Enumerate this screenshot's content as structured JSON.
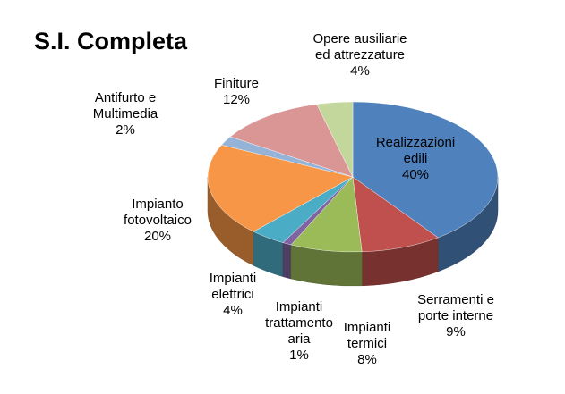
{
  "chart_data": {
    "type": "pie",
    "title": "S.I. Completa",
    "slices": [
      {
        "name_lines": [
          "Realizzazioni",
          "edili"
        ],
        "value": 40,
        "value_label": "40%",
        "color": "#4f81bd"
      },
      {
        "name_lines": [
          "Serramenti e",
          "porte interne"
        ],
        "value": 9,
        "value_label": "9%",
        "color": "#c0504d"
      },
      {
        "name_lines": [
          "Impianti",
          "termici"
        ],
        "value": 8,
        "value_label": "8%",
        "color": "#9bbb59"
      },
      {
        "name_lines": [
          "Impianti",
          "trattamento",
          "aria"
        ],
        "value": 1,
        "value_label": "1%",
        "color": "#8064a2"
      },
      {
        "name_lines": [
          "Impianti",
          "elettrici"
        ],
        "value": 4,
        "value_label": "4%",
        "color": "#4bacc6"
      },
      {
        "name_lines": [
          "Impianto",
          "fotovoltaico"
        ],
        "value": 20,
        "value_label": "20%",
        "color": "#f79646"
      },
      {
        "name_lines": [
          "Antifurto e",
          "Multimedia"
        ],
        "value": 2,
        "value_label": "2%",
        "color": "#95b3d7"
      },
      {
        "name_lines": [
          "Finiture"
        ],
        "value": 12,
        "value_label": "12%",
        "color": "#d99694"
      },
      {
        "name_lines": [
          "Opere ausiliarie",
          "ed attrezzature"
        ],
        "value": 4,
        "value_label": "4%",
        "color": "#c3d69b"
      }
    ],
    "legend": "none",
    "style": "3d-pie"
  }
}
